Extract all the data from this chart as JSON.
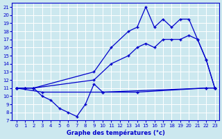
{
  "title": "Graphe des températures (°c)",
  "xlim": [
    -0.5,
    23.5
  ],
  "ylim": [
    7,
    21.5
  ],
  "xticks": [
    0,
    1,
    2,
    3,
    4,
    5,
    6,
    7,
    8,
    9,
    10,
    11,
    12,
    13,
    14,
    15,
    16,
    17,
    18,
    19,
    20,
    21,
    22,
    23
  ],
  "yticks": [
    7,
    8,
    9,
    10,
    11,
    12,
    13,
    14,
    15,
    16,
    17,
    18,
    19,
    20,
    21
  ],
  "bg_color": "#cce8ef",
  "line_color": "#0000cc",
  "grid_color": "#aaccdd",
  "series": {
    "jagged": {
      "x": [
        0,
        1,
        2,
        3,
        4,
        5,
        6,
        7,
        8,
        9,
        10,
        22,
        23
      ],
      "y": [
        11,
        11,
        11,
        10,
        9.5,
        8.5,
        8,
        7.5,
        9,
        11.5,
        10.5,
        11,
        11
      ]
    },
    "line_high": {
      "x": [
        0,
        1,
        2,
        9,
        11,
        13,
        14,
        15,
        16,
        17,
        18,
        19,
        20,
        21,
        22,
        23
      ],
      "y": [
        11,
        11,
        11,
        13,
        16,
        18,
        18.5,
        21,
        18.5,
        19.5,
        18.5,
        19.5,
        19.5,
        17,
        14.5,
        11
      ]
    },
    "line_mid": {
      "x": [
        0,
        1,
        2,
        9,
        11,
        13,
        14,
        15,
        16,
        17,
        18,
        19,
        20,
        21,
        22,
        23
      ],
      "y": [
        11,
        11,
        11,
        12,
        14,
        15,
        16,
        16.5,
        16,
        17,
        17,
        17,
        17.5,
        17,
        14.5,
        11
      ]
    },
    "line_flat": {
      "x": [
        0,
        3,
        10,
        14,
        22,
        23
      ],
      "y": [
        11,
        10.5,
        10.5,
        10.5,
        11,
        11
      ]
    }
  }
}
